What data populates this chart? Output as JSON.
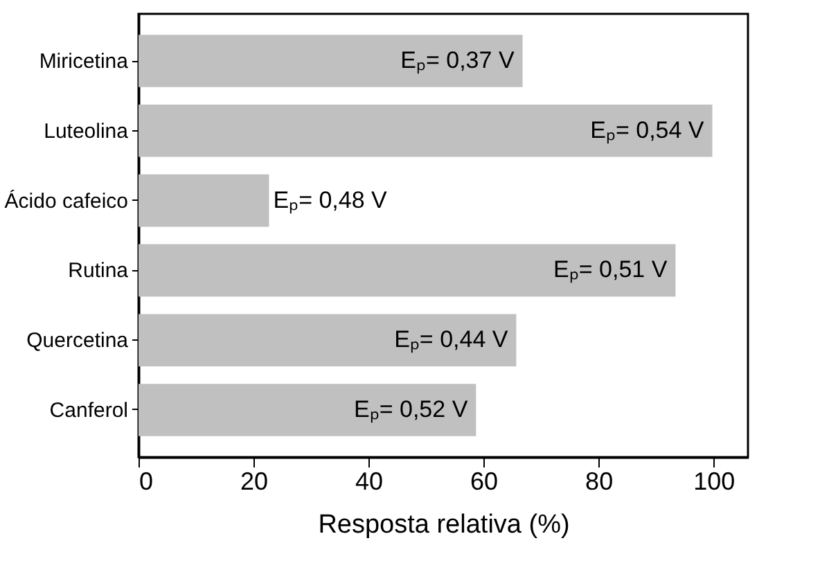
{
  "chart_data": {
    "type": "bar",
    "orientation": "horizontal",
    "categories": [
      "Miricetina",
      "Luteolina",
      "Ácido cafeico",
      "Rutina",
      "Quercetina",
      "Canferol"
    ],
    "values": [
      66.8,
      99.8,
      22.7,
      93.4,
      65.7,
      58.7
    ],
    "color": "#c0c0c0",
    "xlabel": "Resposta relativa (%)",
    "xlim": [
      0,
      106
    ],
    "xticks": [
      0,
      20,
      40,
      60,
      80,
      100
    ],
    "grid": false,
    "annotations": [
      {
        "text": "Eₚ= 0,37 V",
        "x": 66.8,
        "y": "Miricetina"
      },
      {
        "text": "Eₚ= 0,54 V",
        "x": 99.8,
        "y": "Luteolina"
      },
      {
        "text": "Eₚ= 0,48 V",
        "x": 22.7,
        "y": "Ácido cafeico"
      },
      {
        "text": "Eₚ= 0,51 V",
        "x": 93.4,
        "y": "Rutina"
      },
      {
        "text": "Eₚ= 0,44 V",
        "x": 65.7,
        "y": "Quercetina"
      },
      {
        "text": "Eₚ= 0,52 V",
        "x": 58.7,
        "y": "Canferol"
      }
    ]
  }
}
